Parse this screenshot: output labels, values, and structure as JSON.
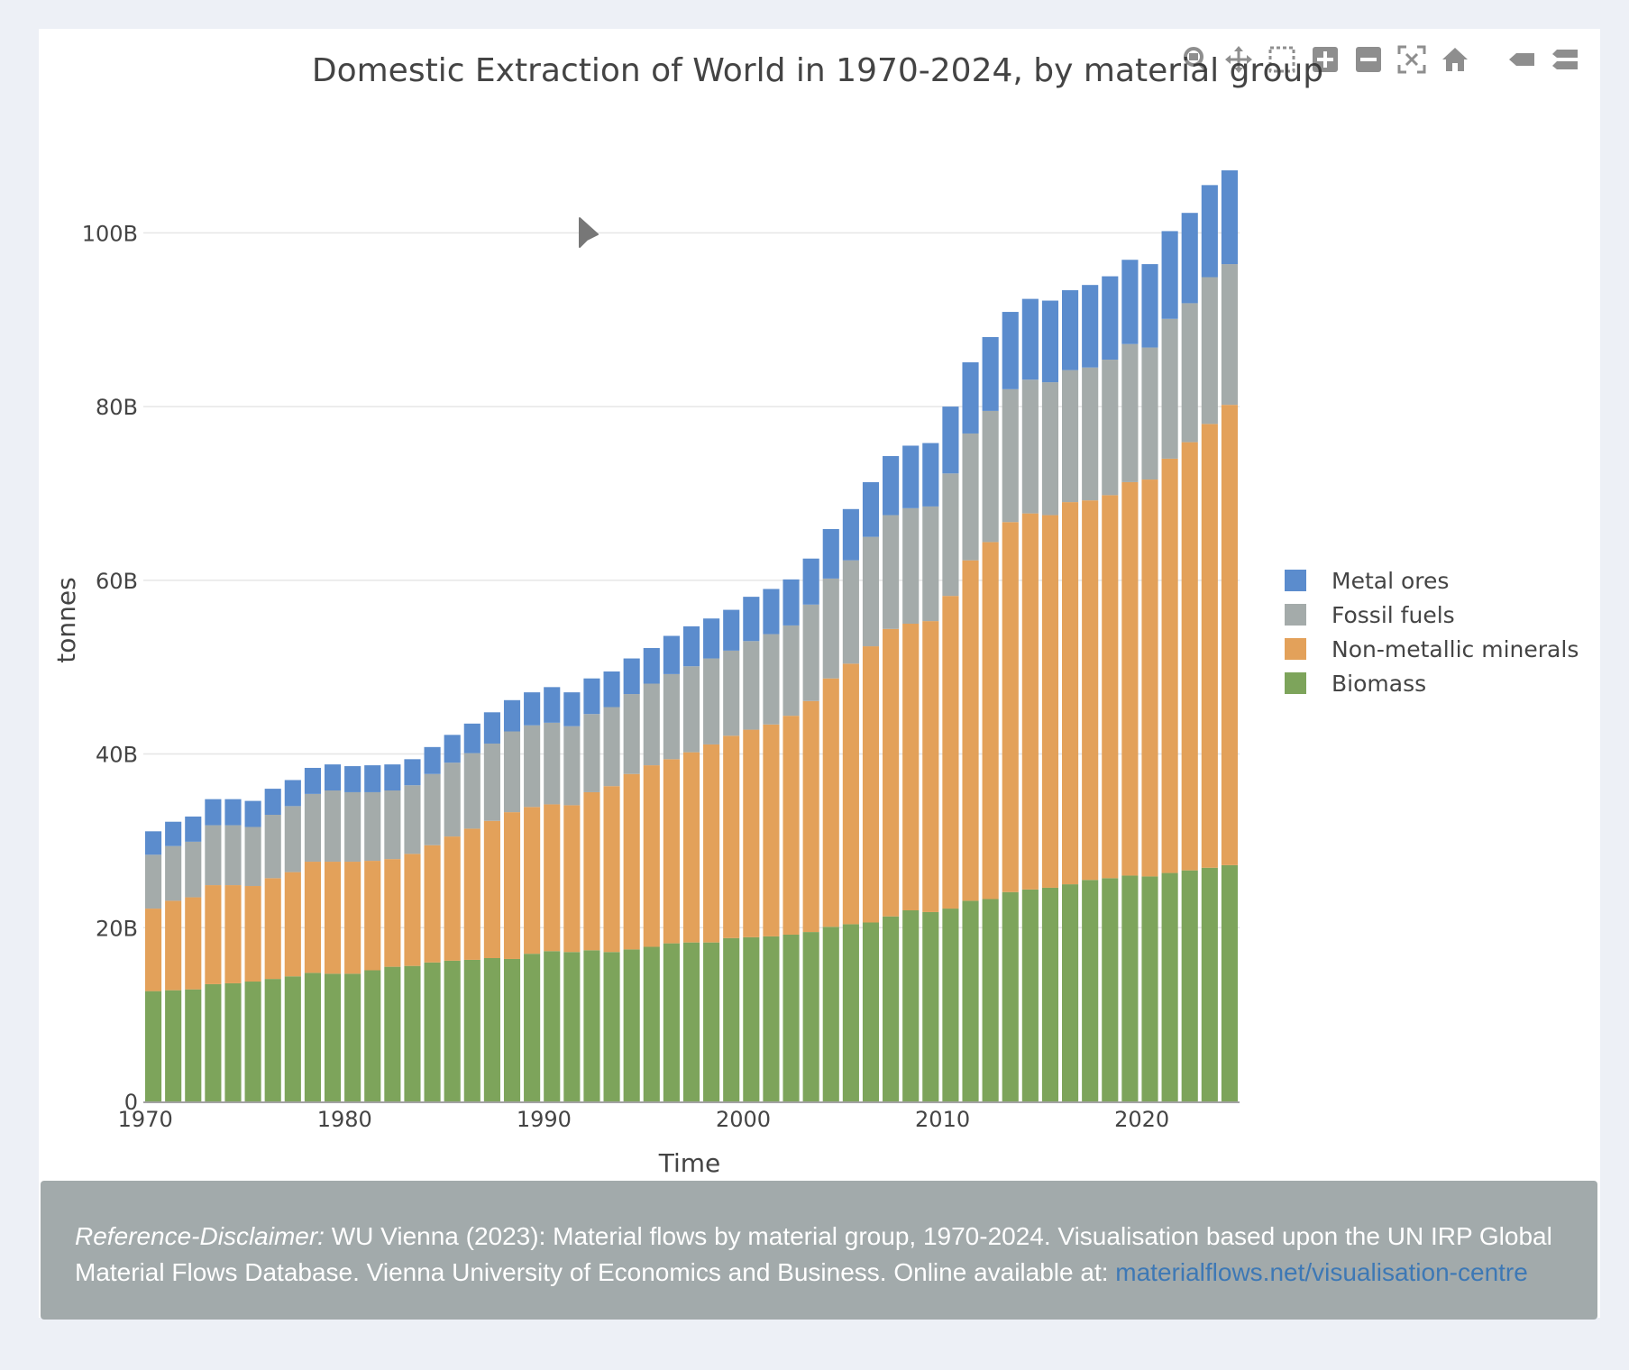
{
  "window": {
    "title": "Domestic Extraction of World in 1970-2024, by material group"
  },
  "colors": {
    "metal_ores": "#5b8ccd",
    "fossil_fuels": "#a4abaa",
    "non_metallic_minerals": "#e3a15a",
    "biomass": "#7da45b",
    "grid": "#e6e6e6",
    "disclaimer_bg": "#a2aaab",
    "link": "#3d78b5"
  },
  "modebar": {
    "buttons": [
      {
        "name": "zoom",
        "icon": "magnifier-icon"
      },
      {
        "name": "pan",
        "icon": "pan-arrows-icon"
      },
      {
        "name": "box-select",
        "icon": "box-select-icon"
      },
      {
        "name": "zoom-in",
        "icon": "zoom-in-icon"
      },
      {
        "name": "zoom-out",
        "icon": "zoom-out-icon"
      },
      {
        "name": "autoscale",
        "icon": "autoscale-icon"
      },
      {
        "name": "reset-axes",
        "icon": "home-icon"
      },
      {
        "name": "hover-closest",
        "icon": "tag-icon"
      },
      {
        "name": "hover-compare",
        "icon": "double-tag-icon"
      }
    ]
  },
  "chart_data": {
    "type": "bar",
    "stacked": true,
    "title": "Domestic Extraction of World in 1970-2024, by material group",
    "xlabel": "Time",
    "ylabel": "tonnes",
    "ylim": [
      0,
      110
    ],
    "y_unit_suffix": "B",
    "y_ticks": [
      0,
      20,
      40,
      60,
      80,
      100
    ],
    "y_tick_labels": [
      "0",
      "20B",
      "40B",
      "60B",
      "80B",
      "100B"
    ],
    "x_ticks": [
      1970,
      1980,
      1990,
      2000,
      2010,
      2020
    ],
    "x_tick_labels": [
      "1970",
      "1980",
      "1990",
      "2000",
      "2010",
      "2020"
    ],
    "grid": true,
    "legend_position": "right",
    "x": [
      1970,
      1971,
      1972,
      1973,
      1974,
      1975,
      1976,
      1977,
      1978,
      1979,
      1980,
      1981,
      1982,
      1983,
      1984,
      1985,
      1986,
      1987,
      1988,
      1989,
      1990,
      1991,
      1992,
      1993,
      1994,
      1995,
      1996,
      1997,
      1998,
      1999,
      2000,
      2001,
      2002,
      2003,
      2004,
      2005,
      2006,
      2007,
      2008,
      2009,
      2010,
      2011,
      2012,
      2013,
      2014,
      2015,
      2016,
      2017,
      2018,
      2019,
      2020,
      2021,
      2022,
      2023,
      2024
    ],
    "series": [
      {
        "name": "Biomass",
        "color_key": "biomass",
        "values": [
          12.7,
          12.8,
          12.9,
          13.5,
          13.6,
          13.8,
          14.1,
          14.4,
          14.8,
          14.7,
          14.7,
          15.1,
          15.5,
          15.6,
          16.0,
          16.2,
          16.3,
          16.5,
          16.4,
          17.0,
          17.3,
          17.2,
          17.4,
          17.2,
          17.5,
          17.8,
          18.2,
          18.3,
          18.3,
          18.8,
          18.9,
          19.0,
          19.2,
          19.5,
          20.1,
          20.4,
          20.6,
          21.3,
          22.0,
          21.8,
          22.2,
          23.1,
          23.3,
          24.1,
          24.4,
          24.6,
          25.0,
          25.5,
          25.7,
          26.0,
          25.9,
          26.3,
          26.6,
          26.9,
          27.2
        ]
      },
      {
        "name": "Non-metallic minerals",
        "color_key": "non_metallic_minerals",
        "values": [
          9.5,
          10.3,
          10.6,
          11.4,
          11.3,
          11.0,
          11.6,
          12.0,
          12.8,
          12.9,
          12.9,
          12.6,
          12.4,
          12.9,
          13.5,
          14.3,
          15.1,
          15.8,
          16.9,
          16.9,
          16.9,
          16.9,
          18.2,
          19.1,
          20.2,
          20.9,
          21.2,
          21.9,
          22.8,
          23.3,
          23.9,
          24.4,
          25.2,
          26.6,
          28.6,
          30.0,
          31.8,
          33.1,
          33.0,
          33.5,
          36.0,
          39.2,
          41.1,
          42.6,
          43.3,
          42.9,
          44.0,
          43.7,
          44.1,
          45.3,
          45.7,
          47.7,
          49.3,
          51.1,
          53.0
        ]
      },
      {
        "name": "Fossil fuels",
        "color_key": "fossil_fuels",
        "values": [
          6.2,
          6.3,
          6.4,
          6.9,
          6.9,
          6.8,
          7.3,
          7.6,
          7.8,
          8.2,
          8.0,
          7.9,
          7.9,
          7.9,
          8.2,
          8.5,
          8.7,
          8.9,
          9.3,
          9.4,
          9.4,
          9.1,
          9.0,
          9.1,
          9.2,
          9.4,
          9.8,
          9.9,
          9.9,
          9.8,
          10.2,
          10.4,
          10.4,
          11.1,
          11.5,
          11.9,
          12.6,
          13.1,
          13.3,
          13.2,
          14.1,
          14.6,
          15.1,
          15.3,
          15.4,
          15.3,
          15.2,
          15.3,
          15.6,
          15.9,
          15.2,
          16.1,
          16.0,
          16.9,
          16.2
        ]
      },
      {
        "name": "Metal ores",
        "color_key": "metal_ores",
        "values": [
          2.7,
          2.8,
          2.9,
          3.0,
          3.0,
          3.0,
          3.0,
          3.0,
          3.0,
          3.0,
          3.0,
          3.1,
          3.0,
          3.0,
          3.1,
          3.2,
          3.4,
          3.6,
          3.6,
          3.8,
          4.1,
          3.9,
          4.1,
          4.1,
          4.1,
          4.1,
          4.4,
          4.6,
          4.6,
          4.7,
          5.1,
          5.2,
          5.3,
          5.3,
          5.7,
          5.9,
          6.3,
          6.8,
          7.2,
          7.3,
          7.7,
          8.2,
          8.5,
          8.9,
          9.3,
          9.4,
          9.2,
          9.5,
          9.6,
          9.7,
          9.6,
          10.1,
          10.4,
          10.6,
          10.8
        ]
      }
    ],
    "legend": [
      "Metal ores",
      "Fossil fuels",
      "Non-metallic minerals",
      "Biomass"
    ]
  },
  "disclaimer": {
    "label": "Reference-Disclaimer:",
    "text": " WU Vienna (2023): Material flows by material group, 1970-2024. Visualisation based upon the UN IRP Global Material Flows Database. Vienna University of Economics and Business. Online available at: ",
    "link_text": "materialflows.net/visualisation-centre"
  }
}
